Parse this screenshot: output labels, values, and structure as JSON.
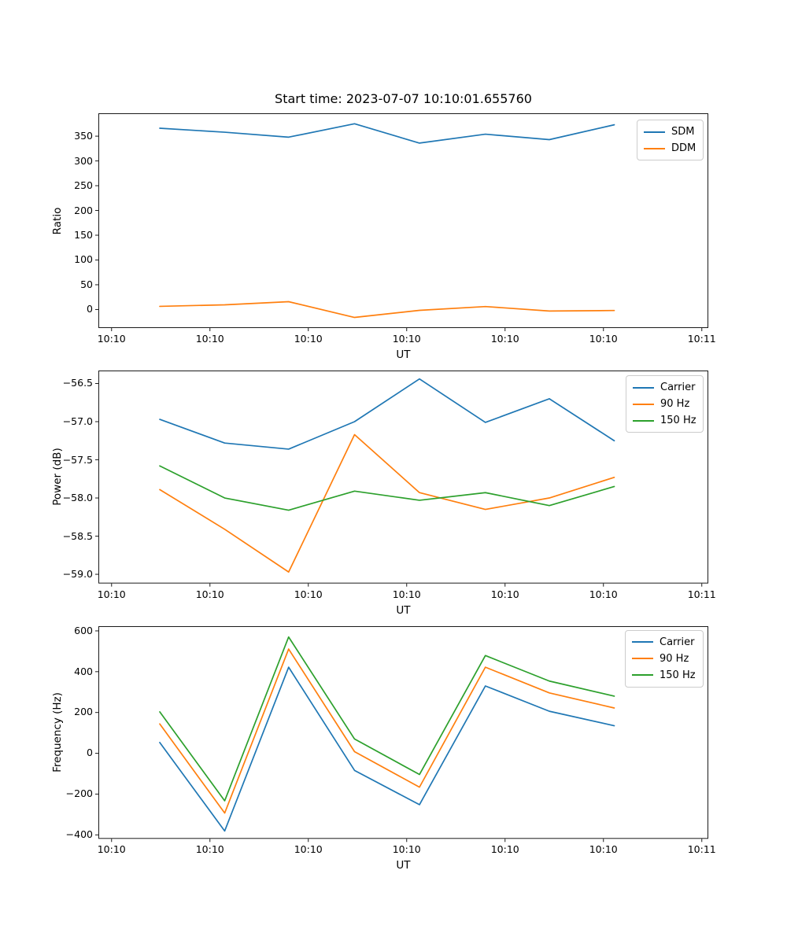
{
  "figure": {
    "title": "Start time: 2023-07-07 10:10:01.655760",
    "background": "#ffffff",
    "palette": {
      "C0": "#1f77b4",
      "C1": "#ff7f0e",
      "C2": "#2ca02c"
    }
  },
  "chart_data": [
    {
      "type": "line",
      "title": "Start time: 2023-07-07 10:10:01.655760",
      "xlabel": "UT",
      "ylabel": "Ratio",
      "grid": false,
      "legend_position": "upper right",
      "x_ut_seconds": [
        4.9,
        11.5,
        18.0,
        24.7,
        31.3,
        38.0,
        44.5,
        51.1
      ],
      "xlim_seconds": [
        -1.34,
        60.66
      ],
      "xticks_seconds": [
        0,
        10,
        20,
        30,
        40,
        50,
        60
      ],
      "xtick_labels": [
        "10:10",
        "10:10",
        "10:10",
        "10:10",
        "10:10",
        "10:10",
        "10:11"
      ],
      "yticks": [
        0,
        50,
        100,
        150,
        200,
        250,
        300,
        350
      ],
      "ytick_decimals": 0,
      "ylim": [
        -37.4,
        396.2
      ],
      "series": [
        {
          "name": "SDM",
          "color": "#1f77b4",
          "values": [
            366,
            358,
            348,
            375,
            336,
            354,
            343,
            373
          ]
        },
        {
          "name": "DDM",
          "color": "#ff7f0e",
          "values": [
            6.4,
            9.5,
            15.8,
            -16,
            -1.7,
            6,
            -3,
            -2
          ]
        }
      ]
    },
    {
      "type": "line",
      "title": "",
      "xlabel": "UT",
      "ylabel": "Power (dB)",
      "grid": false,
      "legend_position": "upper right",
      "x_ut_seconds": [
        4.9,
        11.5,
        18.0,
        24.7,
        31.3,
        38.0,
        44.5,
        51.1
      ],
      "xlim_seconds": [
        -1.34,
        60.66
      ],
      "xticks_seconds": [
        0,
        10,
        20,
        30,
        40,
        50,
        60
      ],
      "xtick_labels": [
        "10:10",
        "10:10",
        "10:10",
        "10:10",
        "10:10",
        "10:10",
        "10:11"
      ],
      "yticks": [
        -56.5,
        -57.0,
        -57.5,
        -58.0,
        -58.5,
        -59.0
      ],
      "ytick_decimals": 1,
      "ylim": [
        -59.12,
        -56.33
      ],
      "series": [
        {
          "name": "Carrier",
          "color": "#1f77b4",
          "values": [
            -56.97,
            -57.28,
            -57.36,
            -57.0,
            -56.44,
            -57.01,
            -56.7,
            -57.25
          ]
        },
        {
          "name": "90 Hz",
          "color": "#ff7f0e",
          "values": [
            -57.89,
            -58.41,
            -58.97,
            -57.17,
            -57.93,
            -58.15,
            -58.0,
            -57.73
          ]
        },
        {
          "name": "150 Hz",
          "color": "#2ca02c",
          "values": [
            -57.58,
            -58.0,
            -58.16,
            -57.91,
            -58.03,
            -57.93,
            -58.1,
            -57.85
          ]
        }
      ]
    },
    {
      "type": "line",
      "title": "",
      "xlabel": "UT",
      "ylabel": "Frequency (Hz)",
      "grid": false,
      "legend_position": "upper right",
      "x_ut_seconds": [
        4.9,
        11.5,
        18.0,
        24.7,
        31.3,
        38.0,
        44.5,
        51.1
      ],
      "xlim_seconds": [
        -1.34,
        60.66
      ],
      "xticks_seconds": [
        0,
        10,
        20,
        30,
        40,
        50,
        60
      ],
      "xtick_labels": [
        "10:10",
        "10:10",
        "10:10",
        "10:10",
        "10:10",
        "10:10",
        "10:11"
      ],
      "yticks": [
        -400,
        -200,
        0,
        200,
        400,
        600
      ],
      "ytick_decimals": 0,
      "ylim": [
        -419.3,
        623
      ],
      "series": [
        {
          "name": "Carrier",
          "color": "#1f77b4",
          "values": [
            53,
            -381,
            422,
            -84,
            -252,
            330,
            206,
            135
          ]
        },
        {
          "name": "90 Hz",
          "color": "#ff7f0e",
          "values": [
            144,
            -293,
            511,
            8,
            -166,
            422,
            296,
            222
          ]
        },
        {
          "name": "150 Hz",
          "color": "#2ca02c",
          "values": [
            203,
            -233,
            570,
            70,
            -104,
            479,
            354,
            280
          ]
        }
      ]
    }
  ]
}
